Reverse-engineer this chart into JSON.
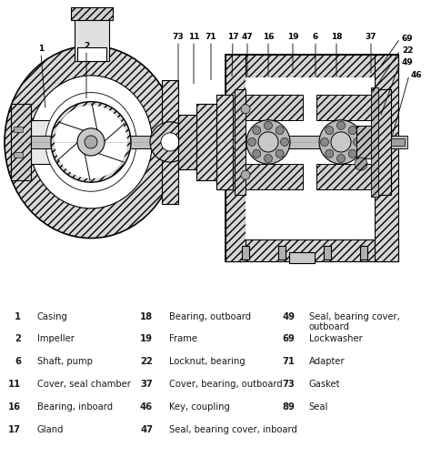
{
  "bg_color": "#ffffff",
  "diagram_bg": "#f0ede8",
  "hatch_color": "#555555",
  "legend_col1": [
    [
      "1",
      "Casing"
    ],
    [
      "2",
      "Impeller"
    ],
    [
      "6",
      "Shaft, pump"
    ],
    [
      "11",
      "Cover, seal chamber"
    ],
    [
      "16",
      "Bearing, inboard"
    ],
    [
      "17",
      "Gland"
    ]
  ],
  "legend_col2": [
    [
      "18",
      "Bearing, outboard"
    ],
    [
      "19",
      "Frame"
    ],
    [
      "22",
      "Locknut, bearing"
    ],
    [
      "37",
      "Cover, bearing, outboard"
    ],
    [
      "46",
      "Key, coupling"
    ],
    [
      "47",
      "Seal, bearing cover, inboard"
    ]
  ],
  "legend_col3": [
    [
      "49",
      "Seal, bearing cover,\noutboard"
    ],
    [
      "69",
      "Lockwasher"
    ],
    [
      "71",
      "Adapter"
    ],
    [
      "73",
      "Gasket"
    ],
    [
      "89",
      "Seal"
    ]
  ],
  "font_color": "#1a1a1a",
  "font_size": 7.2,
  "label_fontsize": 6.5
}
